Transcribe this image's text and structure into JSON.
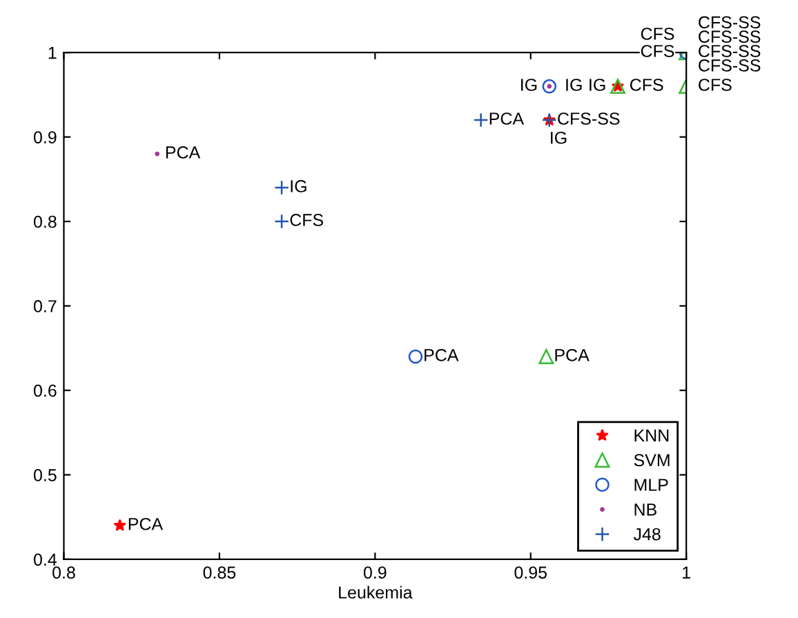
{
  "chart_data": {
    "type": "scatter",
    "xlabel": "Leukemia",
    "xlim": [
      0.8,
      1
    ],
    "ylim": [
      0.4,
      1
    ],
    "xticks": [
      0.8,
      0.85,
      0.9,
      0.95,
      1
    ],
    "yticks": [
      0.4,
      0.5,
      0.6,
      0.7,
      0.8,
      0.9,
      1
    ],
    "grid": false,
    "legend": "bottom right",
    "series": [
      {
        "name": "KNN",
        "color": "#ff0000",
        "marker": "star",
        "x": [
          0.818,
          0.956,
          0.978
        ],
        "values": [
          0.44,
          0.92,
          0.96
        ]
      },
      {
        "name": "SVM",
        "color": "#33bb33",
        "marker": "triangle",
        "x": [
          0.955,
          0.978,
          1,
          1
        ],
        "values": [
          0.64,
          0.96,
          0.96,
          1
        ]
      },
      {
        "name": "MLP",
        "color": "#2255cc",
        "marker": "circle",
        "x": [
          0.913,
          0.956,
          1
        ],
        "values": [
          0.64,
          0.96,
          1
        ]
      },
      {
        "name": "NB",
        "color": "#aa3399",
        "marker": "point",
        "x": [
          0.83,
          0.956
        ],
        "values": [
          0.88,
          0.96
        ]
      },
      {
        "name": "J48",
        "color": "#2255aa",
        "marker": "cross",
        "x": [
          0.87,
          0.87,
          0.934,
          0.956
        ],
        "values": [
          0.84,
          0.8,
          0.92,
          0.92
        ]
      }
    ],
    "annotations": [
      {
        "text": "PCA",
        "x": 0.818,
        "y": 0.44
      },
      {
        "text": "PCA",
        "x": 0.955,
        "y": 0.64
      },
      {
        "text": "PCA",
        "x": 0.913,
        "y": 0.64
      },
      {
        "text": "PCA",
        "x": 0.83,
        "y": 0.88
      },
      {
        "text": "IG",
        "x": 0.87,
        "y": 0.84
      },
      {
        "text": "CFS",
        "x": 0.87,
        "y": 0.8
      },
      {
        "text": "PCA",
        "x": 0.934,
        "y": 0.92
      },
      {
        "text": "CFS-SS",
        "x": 0.956,
        "y": 0.92
      },
      {
        "text": "IG",
        "x": 0.956,
        "y": 0.92
      },
      {
        "text": "IG",
        "x": 0.956,
        "y": 0.96
      },
      {
        "text": "IG",
        "x": 0.956,
        "y": 0.96
      },
      {
        "text": "IG",
        "x": 0.978,
        "y": 0.96
      },
      {
        "text": "CFS",
        "x": 0.978,
        "y": 0.96
      },
      {
        "text": "CFS",
        "x": 1,
        "y": 0.96
      },
      {
        "text": "CFS",
        "x": 1,
        "y": 1
      },
      {
        "text": "CFS",
        "x": 1,
        "y": 1
      },
      {
        "text": "CFS-SS",
        "x": 1,
        "y": 1
      },
      {
        "text": "CFS-SS",
        "x": 1,
        "y": 1
      },
      {
        "text": "CFS-SS",
        "x": 1,
        "y": 1
      },
      {
        "text": "CFS-SS",
        "x": 1,
        "y": 1
      }
    ]
  }
}
